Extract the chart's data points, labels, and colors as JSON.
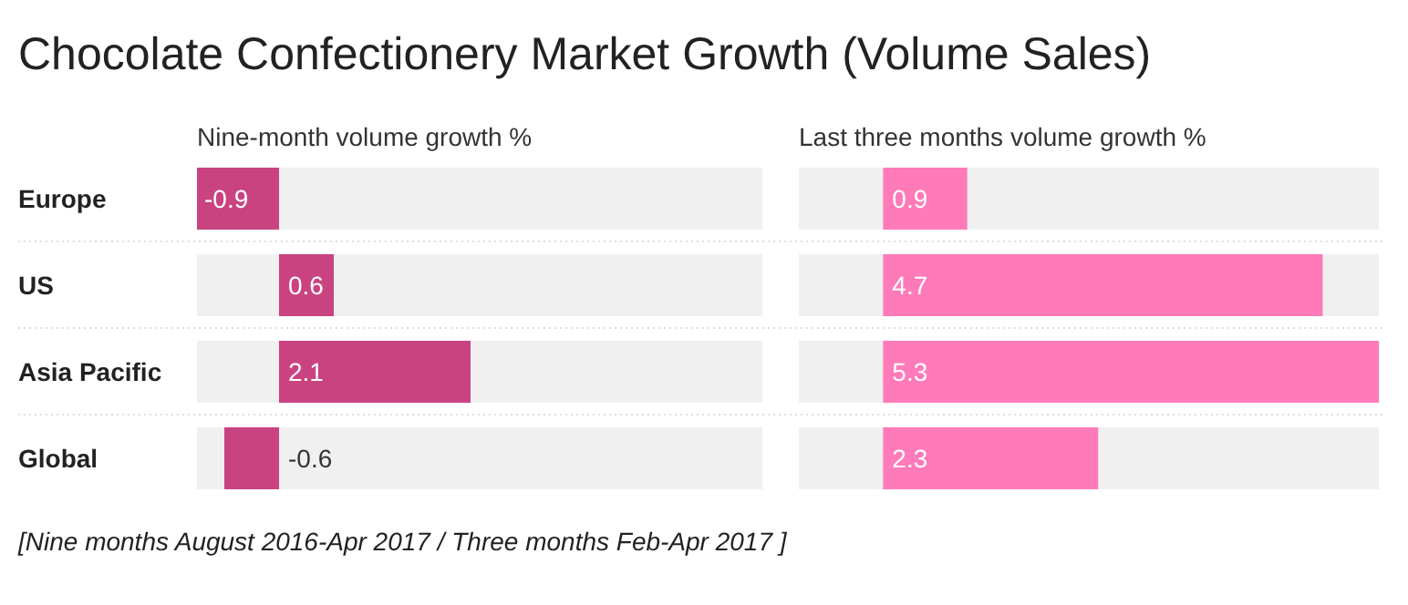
{
  "chart_data": [
    {
      "type": "bar",
      "orientation": "horizontal",
      "title": "Chocolate Confectionery Market Growth (Volume Sales)",
      "subtitle": "Nine-month volume growth %",
      "categories": [
        "Europe",
        "US",
        "Asia Pacific",
        "Global"
      ],
      "values": [
        -0.9,
        0.6,
        2.1,
        -0.6
      ],
      "color": "#c94381",
      "xlim": [
        -0.9,
        5.3
      ],
      "data_labels": true,
      "annotations": [
        "[Nine months August 2016-Apr 2017 / Three months Feb-Apr 2017 ]"
      ]
    },
    {
      "type": "bar",
      "orientation": "horizontal",
      "subtitle": "Last three months volume growth %",
      "categories": [
        "Europe",
        "US",
        "Asia Pacific",
        "Global"
      ],
      "values": [
        0.9,
        4.7,
        5.3,
        2.3
      ],
      "color": "#ff7ab8",
      "xlim": [
        -0.9,
        5.3
      ],
      "data_labels": true,
      "tick_labels": false
    }
  ]
}
